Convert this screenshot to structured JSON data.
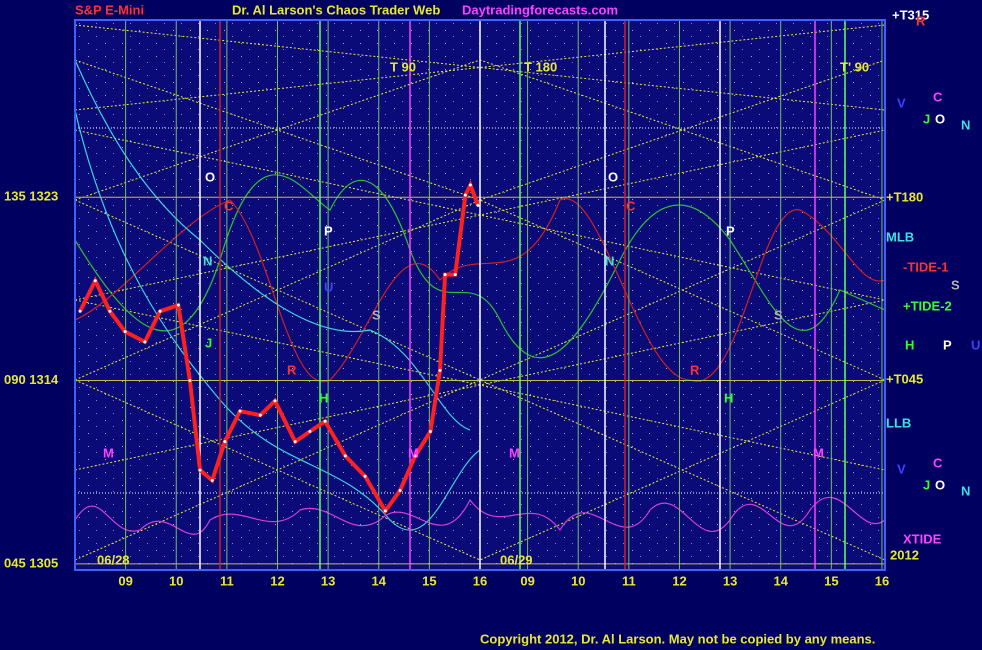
{
  "chart_data": {
    "type": "line",
    "title": "S&P E-Mini",
    "subtitle": "Dr. Al Larson's Chaos Trader Web",
    "site": "Daytradingforecasts.com",
    "copyright": "Copyright 2012, Dr. Al Larson. May not be copied by any means.",
    "dates": [
      "06/28",
      "06/29"
    ],
    "color": "#ff2020",
    "x": [
      8.1,
      8.4,
      8.69,
      8.99,
      9.38,
      9.68,
      10.04,
      10.27,
      10.47,
      10.71,
      10.96,
      11.26,
      11.66,
      11.95,
      12.35,
      12.64,
      12.94,
      13.34,
      13.73,
      14.13,
      14.42,
      14.72,
      15.02,
      15.21,
      15.31,
      15.51,
      15.71,
      15.81,
      15.96
    ],
    "values": [
      1317.4,
      1318.9,
      1317.4,
      1316.4,
      1315.9,
      1317.4,
      1317.7,
      1314.0,
      1309.6,
      1309.1,
      1311.0,
      1312.5,
      1312.3,
      1313.0,
      1311.0,
      1311.5,
      1312.0,
      1310.3,
      1309.3,
      1307.6,
      1308.6,
      1310.3,
      1311.5,
      1314.5,
      1319.2,
      1319.2,
      1323.1,
      1323.6,
      1322.6
    ],
    "xlim": [
      8,
      24
    ],
    "xticks": [
      {
        "value": 9,
        "label": "09"
      },
      10,
      11,
      12,
      13,
      14,
      15,
      16,
      {
        "value": 16.94,
        "label": "09"
      },
      {
        "value": 17.94,
        "label": "10"
      },
      {
        "value": 18.94,
        "label": "11"
      },
      {
        "value": 19.94,
        "label": "12"
      },
      {
        "value": 20.94,
        "label": "13"
      },
      {
        "value": 21.94,
        "label": "14"
      },
      {
        "value": 22.94,
        "label": "15"
      },
      {
        "value": 23.94,
        "label": "16"
      }
    ],
    "ylim": [
      1304.7,
      1331.7
    ],
    "yticks": [
      {
        "value": 1305,
        "label": "045 1305"
      },
      {
        "value": 1314,
        "label": "090 1314"
      },
      {
        "value": 1323,
        "label": "135 1323"
      }
    ],
    "grid": true,
    "annotations": [
      "O",
      "C",
      "N",
      "P",
      "U",
      "S",
      "J",
      "R",
      "H",
      "M",
      "M",
      "M",
      "M",
      "O",
      "C",
      "N",
      "P",
      "S",
      "R",
      "H",
      "T  90",
      "T  180",
      "T'  90",
      "+T315",
      "R",
      "V",
      "C",
      "J",
      "O",
      "N",
      "+T180",
      "MLB",
      "-TIDE-1",
      "S",
      "+TIDE-2",
      "H",
      "P",
      "U",
      "+T045",
      "LLB",
      "V",
      "C",
      "J",
      "O",
      "N",
      "XTIDE",
      "2012"
    ]
  }
}
